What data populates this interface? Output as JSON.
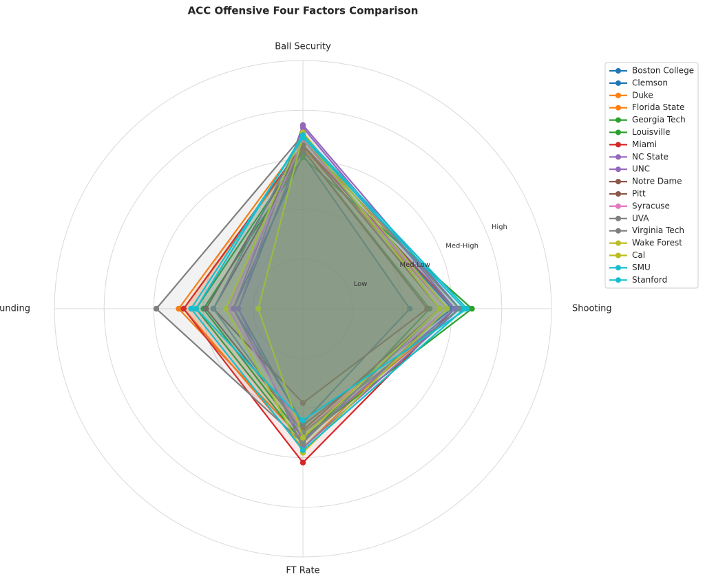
{
  "chart_data": {
    "type": "radar",
    "title": "ACC Offensive Four Factors Comparison",
    "categories": [
      "Shooting",
      "Ball Security",
      "Off Rebounding",
      "FT Rate"
    ],
    "ylim": [
      0,
      100
    ],
    "yticks": [
      {
        "value": 20,
        "label": "Low"
      },
      {
        "value": 40,
        "label": "Med-Low"
      },
      {
        "value": 60,
        "label": "Med-High"
      },
      {
        "value": 80,
        "label": "High"
      }
    ],
    "grid": true,
    "legend": "right",
    "series": [
      {
        "name": "Boston College",
        "color": "#1f77b4",
        "values": [
          43,
          62,
          28,
          46
        ]
      },
      {
        "name": "Clemson",
        "color": "#1f77b4",
        "values": [
          60,
          66,
          26,
          47
        ]
      },
      {
        "name": "Duke",
        "color": "#ff7f0e",
        "values": [
          63,
          68,
          50,
          53
        ]
      },
      {
        "name": "Florida State",
        "color": "#ff7f0e",
        "values": [
          58,
          65,
          48,
          56
        ]
      },
      {
        "name": "Georgia Tech",
        "color": "#2ca02c",
        "values": [
          68,
          61,
          40,
          52
        ]
      },
      {
        "name": "Louisville",
        "color": "#2ca02c",
        "values": [
          51,
          64,
          43,
          54
        ]
      },
      {
        "name": "Miami",
        "color": "#d62728",
        "values": [
          61,
          66,
          48,
          62
        ]
      },
      {
        "name": "NC State",
        "color": "#9467bd",
        "values": [
          61,
          73,
          28,
          53
        ]
      },
      {
        "name": "UNC",
        "color": "#9467bd",
        "values": [
          63,
          74,
          26,
          56
        ]
      },
      {
        "name": "Notre Dame",
        "color": "#8c564b",
        "values": [
          50,
          64,
          36,
          38
        ]
      },
      {
        "name": "Pitt",
        "color": "#8c564b",
        "values": [
          55,
          66,
          39,
          49
        ]
      },
      {
        "name": "Syracuse",
        "color": "#e377c2",
        "values": [
          58,
          68,
          30,
          50
        ]
      },
      {
        "name": "UVA",
        "color": "#7f7f7f",
        "values": [
          55,
          70,
          59,
          54
        ]
      },
      {
        "name": "Virginia Tech",
        "color": "#7f7f7f",
        "values": [
          63,
          70,
          36,
          50
        ]
      },
      {
        "name": "Wake Forest",
        "color": "#bcbd22",
        "values": [
          58,
          71,
          31,
          58
        ]
      },
      {
        "name": "Cal",
        "color": "#bcbd22",
        "values": [
          55,
          70,
          18,
          52
        ]
      },
      {
        "name": "SMU",
        "color": "#17becf",
        "values": [
          66,
          70,
          43,
          45
        ]
      },
      {
        "name": "Stanford",
        "color": "#17becf",
        "values": [
          65,
          69,
          45,
          57
        ]
      }
    ]
  }
}
